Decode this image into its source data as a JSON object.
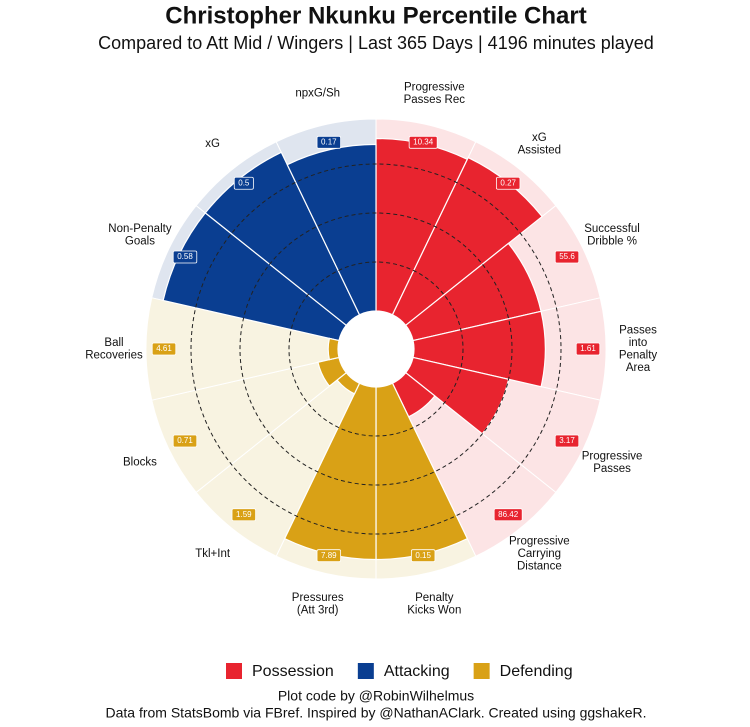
{
  "chart_data": {
    "type": "polar-bar",
    "title": "Christopher Nkunku Percentile Chart",
    "subtitle": "Compared to Att Mid / Wingers | Last 365 Days | 4196 minutes played",
    "categories": [
      "Progressive\nPasses Rec",
      "xG\nAssisted",
      "Successful\nDribble %",
      "Passes\ninto\nPenalty\nArea",
      "Progressive\nPasses",
      "Progressive\nCarrying\nDistance",
      "Penalty\nKicks Won",
      "Pressures\n(Att 3rd)",
      "Tkl+Int",
      "Blocks",
      "Ball\nRecoveries",
      "Non-Penalty\nGoals",
      "xG",
      "npxG/Sh"
    ],
    "series": [
      {
        "name": "Possession",
        "color": "#e8242f",
        "background_color": "#fce4e5",
        "values": [
          88,
          89,
          67,
          67,
          50,
          19,
          null,
          null,
          null,
          null,
          null,
          null,
          null,
          null
        ],
        "stats": [
          10.34,
          0.27,
          55.6,
          1.61,
          3.17,
          86.42,
          null,
          null,
          null,
          null,
          null,
          null,
          null,
          null
        ]
      },
      {
        "name": "Attacking",
        "color": "#0a3e91",
        "background_color": "#dfe5ef",
        "values": [
          null,
          null,
          null,
          null,
          null,
          null,
          null,
          null,
          null,
          null,
          null,
          92,
          92,
          85
        ],
        "stats": [
          null,
          null,
          null,
          null,
          null,
          null,
          null,
          null,
          null,
          null,
          null,
          0.58,
          0.5,
          0.17
        ]
      },
      {
        "name": "Defending",
        "color": "#d9a116",
        "background_color": "#f8f3e1",
        "values": [
          null,
          null,
          null,
          null,
          null,
          null,
          88,
          88,
          6,
          11,
          5,
          null,
          null,
          null
        ],
        "stats": [
          null,
          null,
          null,
          null,
          null,
          null,
          0.15,
          7.89,
          1.59,
          0.71,
          4.61,
          null,
          null,
          null
        ]
      }
    ],
    "rlim": [
      0,
      100
    ],
    "rticks": [
      25,
      50,
      75
    ],
    "legend": "bottom",
    "caption": [
      "Plot code by @RobinWilhelmus",
      "Data from StatsBomb via FBref. Inspired by @NathanAClark. Created using ggshakeR."
    ]
  }
}
